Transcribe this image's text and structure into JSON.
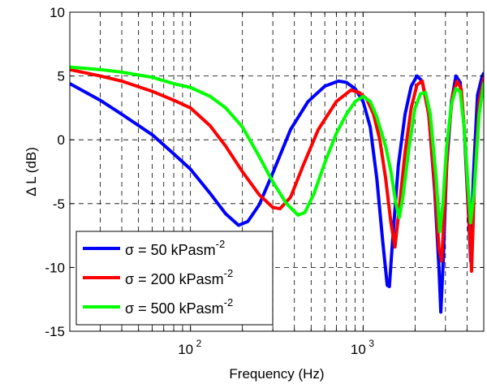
{
  "chart_data": {
    "type": "line",
    "title": "",
    "xlabel": "Frequency (Hz)",
    "ylabel": "Δ L (dB)",
    "xscale": "log",
    "xlim": [
      20,
      5000
    ],
    "ylim": [
      -15,
      10
    ],
    "y_ticks": [
      -15,
      -10,
      -5,
      0,
      5,
      10
    ],
    "x_ticks": [
      {
        "value": 100,
        "base": "10",
        "exp": "2"
      },
      {
        "value": 1000,
        "base": "10",
        "exp": "3"
      }
    ],
    "grid": true,
    "legend_position": "lower-left",
    "series": [
      {
        "name_main": "σ = 50 kPasm",
        "name_sup": "-2",
        "color": "#0000ff",
        "points": [
          [
            20,
            4.4
          ],
          [
            30,
            3.1
          ],
          [
            40,
            2.0
          ],
          [
            60,
            0.4
          ],
          [
            80,
            -1.1
          ],
          [
            100,
            -2.3
          ],
          [
            130,
            -4.2
          ],
          [
            160,
            -5.8
          ],
          [
            190,
            -6.7
          ],
          [
            215,
            -6.4
          ],
          [
            250,
            -5.1
          ],
          [
            300,
            -2.6
          ],
          [
            380,
            0.8
          ],
          [
            480,
            3.0
          ],
          [
            600,
            4.2
          ],
          [
            720,
            4.6
          ],
          [
            800,
            4.5
          ],
          [
            900,
            4.0
          ],
          [
            1000,
            3.0
          ],
          [
            1100,
            1.0
          ],
          [
            1200,
            -3.0
          ],
          [
            1300,
            -8.0
          ],
          [
            1380,
            -11.4
          ],
          [
            1420,
            -11.5
          ],
          [
            1480,
            -8.0
          ],
          [
            1600,
            -2.0
          ],
          [
            1750,
            2.0
          ],
          [
            1900,
            4.2
          ],
          [
            2050,
            5.0
          ],
          [
            2200,
            4.6
          ],
          [
            2400,
            2.0
          ],
          [
            2600,
            -4.0
          ],
          [
            2750,
            -10.0
          ],
          [
            2820,
            -13.5
          ],
          [
            2900,
            -10.0
          ],
          [
            3050,
            -2.0
          ],
          [
            3250,
            3.0
          ],
          [
            3450,
            5.0
          ],
          [
            3650,
            4.5
          ],
          [
            3850,
            1.0
          ],
          [
            4050,
            -5.0
          ],
          [
            4200,
            -9.5
          ],
          [
            4350,
            -3.0
          ],
          [
            4600,
            3.5
          ],
          [
            4900,
            5.0
          ],
          [
            5000,
            5.2
          ]
        ]
      },
      {
        "name_main": "σ = 200 kPasm",
        "name_sup": "-2",
        "color": "#ff0000",
        "points": [
          [
            20,
            5.5
          ],
          [
            30,
            5.0
          ],
          [
            40,
            4.6
          ],
          [
            60,
            3.8
          ],
          [
            80,
            3.1
          ],
          [
            100,
            2.5
          ],
          [
            130,
            1.1
          ],
          [
            160,
            -0.5
          ],
          [
            200,
            -2.5
          ],
          [
            250,
            -4.3
          ],
          [
            300,
            -5.3
          ],
          [
            330,
            -5.4
          ],
          [
            380,
            -4.5
          ],
          [
            450,
            -2.0
          ],
          [
            550,
            0.8
          ],
          [
            700,
            3.0
          ],
          [
            850,
            3.9
          ],
          [
            950,
            3.7
          ],
          [
            1050,
            3.2
          ],
          [
            1150,
            2.0
          ],
          [
            1250,
            0.0
          ],
          [
            1350,
            -3.0
          ],
          [
            1450,
            -6.5
          ],
          [
            1530,
            -8.4
          ],
          [
            1600,
            -6.0
          ],
          [
            1750,
            -1.0
          ],
          [
            1900,
            2.5
          ],
          [
            2050,
            4.3
          ],
          [
            2200,
            4.6
          ],
          [
            2400,
            2.0
          ],
          [
            2600,
            -3.5
          ],
          [
            2750,
            -8.5
          ],
          [
            2850,
            -9.5
          ],
          [
            2950,
            -6.0
          ],
          [
            3100,
            0.0
          ],
          [
            3300,
            3.5
          ],
          [
            3500,
            4.6
          ],
          [
            3700,
            4.0
          ],
          [
            3900,
            0.0
          ],
          [
            4100,
            -6.0
          ],
          [
            4250,
            -10.3
          ],
          [
            4400,
            -4.0
          ],
          [
            4700,
            3.0
          ],
          [
            5000,
            4.8
          ]
        ]
      },
      {
        "name_main": "σ = 500 kPasm",
        "name_sup": "-2",
        "color": "#00ff00",
        "points": [
          [
            20,
            5.7
          ],
          [
            30,
            5.5
          ],
          [
            40,
            5.3
          ],
          [
            60,
            4.9
          ],
          [
            80,
            4.4
          ],
          [
            100,
            4.1
          ],
          [
            130,
            3.4
          ],
          [
            160,
            2.5
          ],
          [
            200,
            1.0
          ],
          [
            250,
            -1.3
          ],
          [
            300,
            -3.3
          ],
          [
            360,
            -5.0
          ],
          [
            420,
            -5.9
          ],
          [
            460,
            -5.7
          ],
          [
            520,
            -4.2
          ],
          [
            600,
            -1.8
          ],
          [
            700,
            0.5
          ],
          [
            800,
            2.0
          ],
          [
            900,
            3.0
          ],
          [
            1000,
            3.4
          ],
          [
            1100,
            3.0
          ],
          [
            1200,
            1.8
          ],
          [
            1350,
            -0.5
          ],
          [
            1450,
            -2.5
          ],
          [
            1550,
            -5.0
          ],
          [
            1620,
            -6.1
          ],
          [
            1700,
            -4.5
          ],
          [
            1850,
            -0.5
          ],
          [
            2000,
            2.5
          ],
          [
            2150,
            3.6
          ],
          [
            2300,
            3.7
          ],
          [
            2450,
            2.0
          ],
          [
            2650,
            -3.0
          ],
          [
            2780,
            -7.2
          ],
          [
            2900,
            -5.0
          ],
          [
            3050,
            -0.5
          ],
          [
            3250,
            2.8
          ],
          [
            3450,
            4.0
          ],
          [
            3650,
            3.8
          ],
          [
            3850,
            1.0
          ],
          [
            4050,
            -3.5
          ],
          [
            4200,
            -6.5
          ],
          [
            4400,
            -4.0
          ],
          [
            4700,
            2.0
          ],
          [
            5000,
            4.4
          ]
        ]
      }
    ]
  }
}
